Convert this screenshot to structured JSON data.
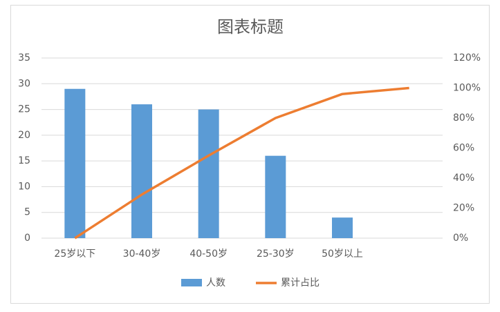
{
  "chart_data": {
    "type": "bar-line",
    "title": "图表标题",
    "categories": [
      "25岁以下",
      "30-40岁",
      "40-50岁",
      "25-30岁",
      "50岁以上",
      null
    ],
    "series": [
      {
        "name": "人数",
        "type": "bar",
        "color": "#5b9bd5",
        "values": [
          29,
          26,
          25,
          16,
          4,
          null
        ]
      },
      {
        "name": "累计占比",
        "type": "line",
        "axis": "y2",
        "color": "#ed7d31",
        "values": [
          0,
          29,
          55,
          80,
          96,
          100
        ]
      }
    ],
    "ylim": [
      0,
      35
    ],
    "yticks": [
      0,
      5,
      10,
      15,
      20,
      25,
      30,
      35
    ],
    "y2lim": [
      0,
      120
    ],
    "y2ticks": [
      {
        "value": 0,
        "label": "0%"
      },
      {
        "value": 20,
        "label": "20%"
      },
      {
        "value": 40,
        "label": "40%"
      },
      {
        "value": 60,
        "label": "60%"
      },
      {
        "value": 80,
        "label": "80%"
      },
      {
        "value": 100,
        "label": "100%"
      },
      {
        "value": 120,
        "label": "120%"
      }
    ],
    "grid": true,
    "legend": "bottom"
  }
}
